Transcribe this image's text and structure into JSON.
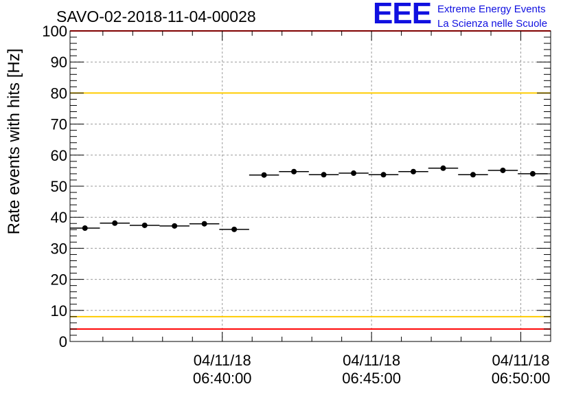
{
  "chart_data": {
    "type": "scatter",
    "title": "SAVO-02-2018-11-04-00028",
    "ylabel": "Rate events with hits [Hz]",
    "xlabel": "",
    "ylim": [
      0,
      100
    ],
    "yticks": [
      0,
      10,
      20,
      30,
      40,
      50,
      60,
      70,
      80,
      90,
      100
    ],
    "xlim": [
      "06:34:54",
      "06:51:00"
    ],
    "xticks": [
      {
        "time": "06:40:00",
        "date": "04/11/18",
        "label": "06:40:00"
      },
      {
        "time": "06:45:00",
        "date": "04/11/18",
        "label": "06:45:00"
      },
      {
        "time": "06:50:00",
        "date": "04/11/18",
        "label": "06:50:00"
      }
    ],
    "grid": true,
    "bin_width_seconds": 60,
    "points": [
      {
        "x": "06:35:24",
        "y": 36.5
      },
      {
        "x": "06:36:24",
        "y": 38.1
      },
      {
        "x": "06:37:24",
        "y": 37.4
      },
      {
        "x": "06:38:24",
        "y": 37.2
      },
      {
        "x": "06:39:24",
        "y": 37.9
      },
      {
        "x": "06:40:24",
        "y": 36.1
      },
      {
        "x": "06:41:24",
        "y": 53.6
      },
      {
        "x": "06:42:24",
        "y": 54.7
      },
      {
        "x": "06:43:24",
        "y": 53.7
      },
      {
        "x": "06:44:24",
        "y": 54.2
      },
      {
        "x": "06:45:24",
        "y": 53.7
      },
      {
        "x": "06:46:24",
        "y": 54.7
      },
      {
        "x": "06:47:24",
        "y": 55.8
      },
      {
        "x": "06:48:24",
        "y": 53.7
      },
      {
        "x": "06:49:24",
        "y": 55.1
      },
      {
        "x": "06:50:24",
        "y": 54.0
      }
    ],
    "reference_lines": [
      {
        "y": 100,
        "color": "#ff0000"
      },
      {
        "y": 80,
        "color": "#ffcc00"
      },
      {
        "y": 8,
        "color": "#ffcc00"
      },
      {
        "y": 4,
        "color": "#ff0000"
      }
    ]
  },
  "logo": {
    "mark": "EEE",
    "line1": "Extreme Energy Events",
    "line2": "La Scienza nelle Scuole",
    "color": "#1010e0"
  }
}
